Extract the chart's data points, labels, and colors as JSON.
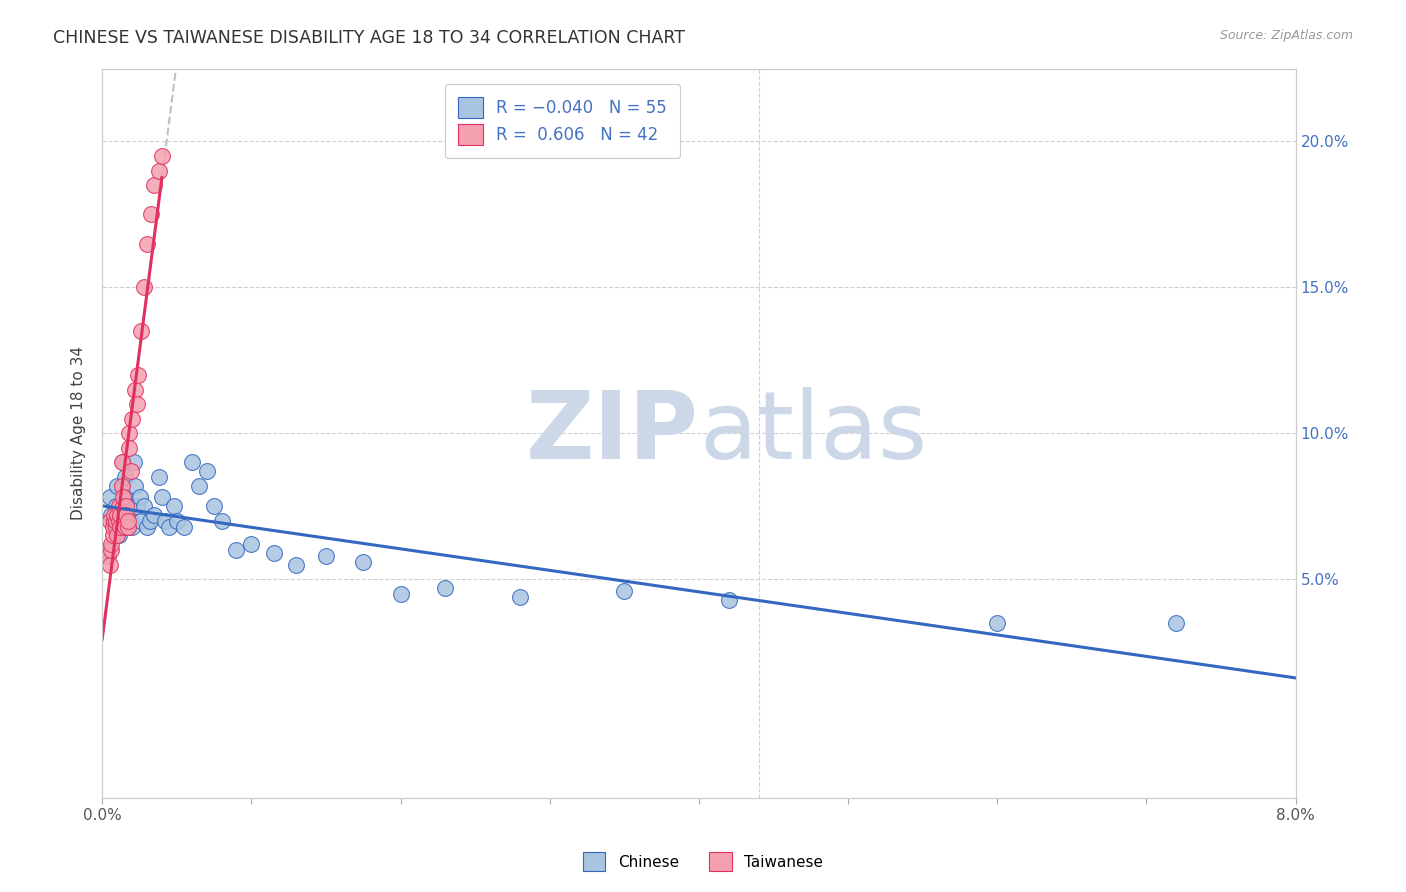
{
  "title": "CHINESE VS TAIWANESE DISABILITY AGE 18 TO 34 CORRELATION CHART",
  "source": "Source: ZipAtlas.com",
  "ylabel": "Disability Age 18 to 34",
  "r_chinese": -0.04,
  "n_chinese": 55,
  "r_taiwanese": 0.606,
  "n_taiwanese": 42,
  "chinese_color": "#a8c4e0",
  "taiwanese_color": "#f4a0b0",
  "chinese_line_color": "#3468c0",
  "taiwanese_line_color": "#e03060",
  "dashed_line_color": "#c0c0c0",
  "background_color": "#ffffff",
  "watermark_zip": "ZIP",
  "watermark_atlas": "atlas",
  "watermark_color": "#ccd8e8",
  "right_yticks": [
    0.05,
    0.1,
    0.15,
    0.2
  ],
  "right_ytick_labels": [
    "5.0%",
    "10.0%",
    "15.0%",
    "20.0%"
  ],
  "xlim": [
    0.0,
    0.08
  ],
  "ylim": [
    -0.025,
    0.225
  ],
  "chinese_x": [
    0.0005,
    0.0006,
    0.0007,
    0.0008,
    0.0009,
    0.001,
    0.001,
    0.0011,
    0.0012,
    0.0012,
    0.0013,
    0.0013,
    0.0014,
    0.0015,
    0.0015,
    0.0016,
    0.0017,
    0.0017,
    0.0018,
    0.0019,
    0.002,
    0.0021,
    0.0022,
    0.0023,
    0.0025,
    0.0026,
    0.0028,
    0.003,
    0.0032,
    0.0035,
    0.0038,
    0.004,
    0.0042,
    0.0045,
    0.0048,
    0.005,
    0.0055,
    0.006,
    0.0065,
    0.007,
    0.0075,
    0.008,
    0.009,
    0.01,
    0.0115,
    0.013,
    0.015,
    0.0175,
    0.02,
    0.023,
    0.028,
    0.035,
    0.042,
    0.06,
    0.072
  ],
  "chinese_y": [
    0.078,
    0.072,
    0.07,
    0.068,
    0.075,
    0.07,
    0.082,
    0.065,
    0.07,
    0.075,
    0.068,
    0.072,
    0.09,
    0.085,
    0.078,
    0.072,
    0.07,
    0.068,
    0.075,
    0.07,
    0.068,
    0.09,
    0.082,
    0.075,
    0.078,
    0.07,
    0.075,
    0.068,
    0.07,
    0.072,
    0.085,
    0.078,
    0.07,
    0.068,
    0.075,
    0.07,
    0.068,
    0.09,
    0.082,
    0.087,
    0.075,
    0.07,
    0.06,
    0.062,
    0.059,
    0.055,
    0.058,
    0.056,
    0.045,
    0.047,
    0.044,
    0.046,
    0.043,
    0.035,
    0.035
  ],
  "taiwanese_x": [
    0.0003,
    0.0004,
    0.0005,
    0.0005,
    0.0006,
    0.0006,
    0.0007,
    0.0007,
    0.0008,
    0.0008,
    0.0009,
    0.0009,
    0.001,
    0.001,
    0.0011,
    0.0011,
    0.0012,
    0.0012,
    0.0013,
    0.0013,
    0.0014,
    0.0014,
    0.0015,
    0.0015,
    0.0016,
    0.0016,
    0.0017,
    0.0017,
    0.0018,
    0.0018,
    0.0019,
    0.002,
    0.0022,
    0.0023,
    0.0024,
    0.0026,
    0.0028,
    0.003,
    0.0033,
    0.0035,
    0.0038,
    0.004
  ],
  "taiwanese_y": [
    0.06,
    0.058,
    0.055,
    0.07,
    0.06,
    0.062,
    0.065,
    0.068,
    0.07,
    0.072,
    0.068,
    0.07,
    0.065,
    0.072,
    0.07,
    0.075,
    0.072,
    0.068,
    0.09,
    0.082,
    0.075,
    0.078,
    0.07,
    0.068,
    0.075,
    0.072,
    0.068,
    0.07,
    0.1,
    0.095,
    0.087,
    0.105,
    0.115,
    0.11,
    0.12,
    0.135,
    0.15,
    0.165,
    0.175,
    0.185,
    0.19,
    0.195
  ]
}
